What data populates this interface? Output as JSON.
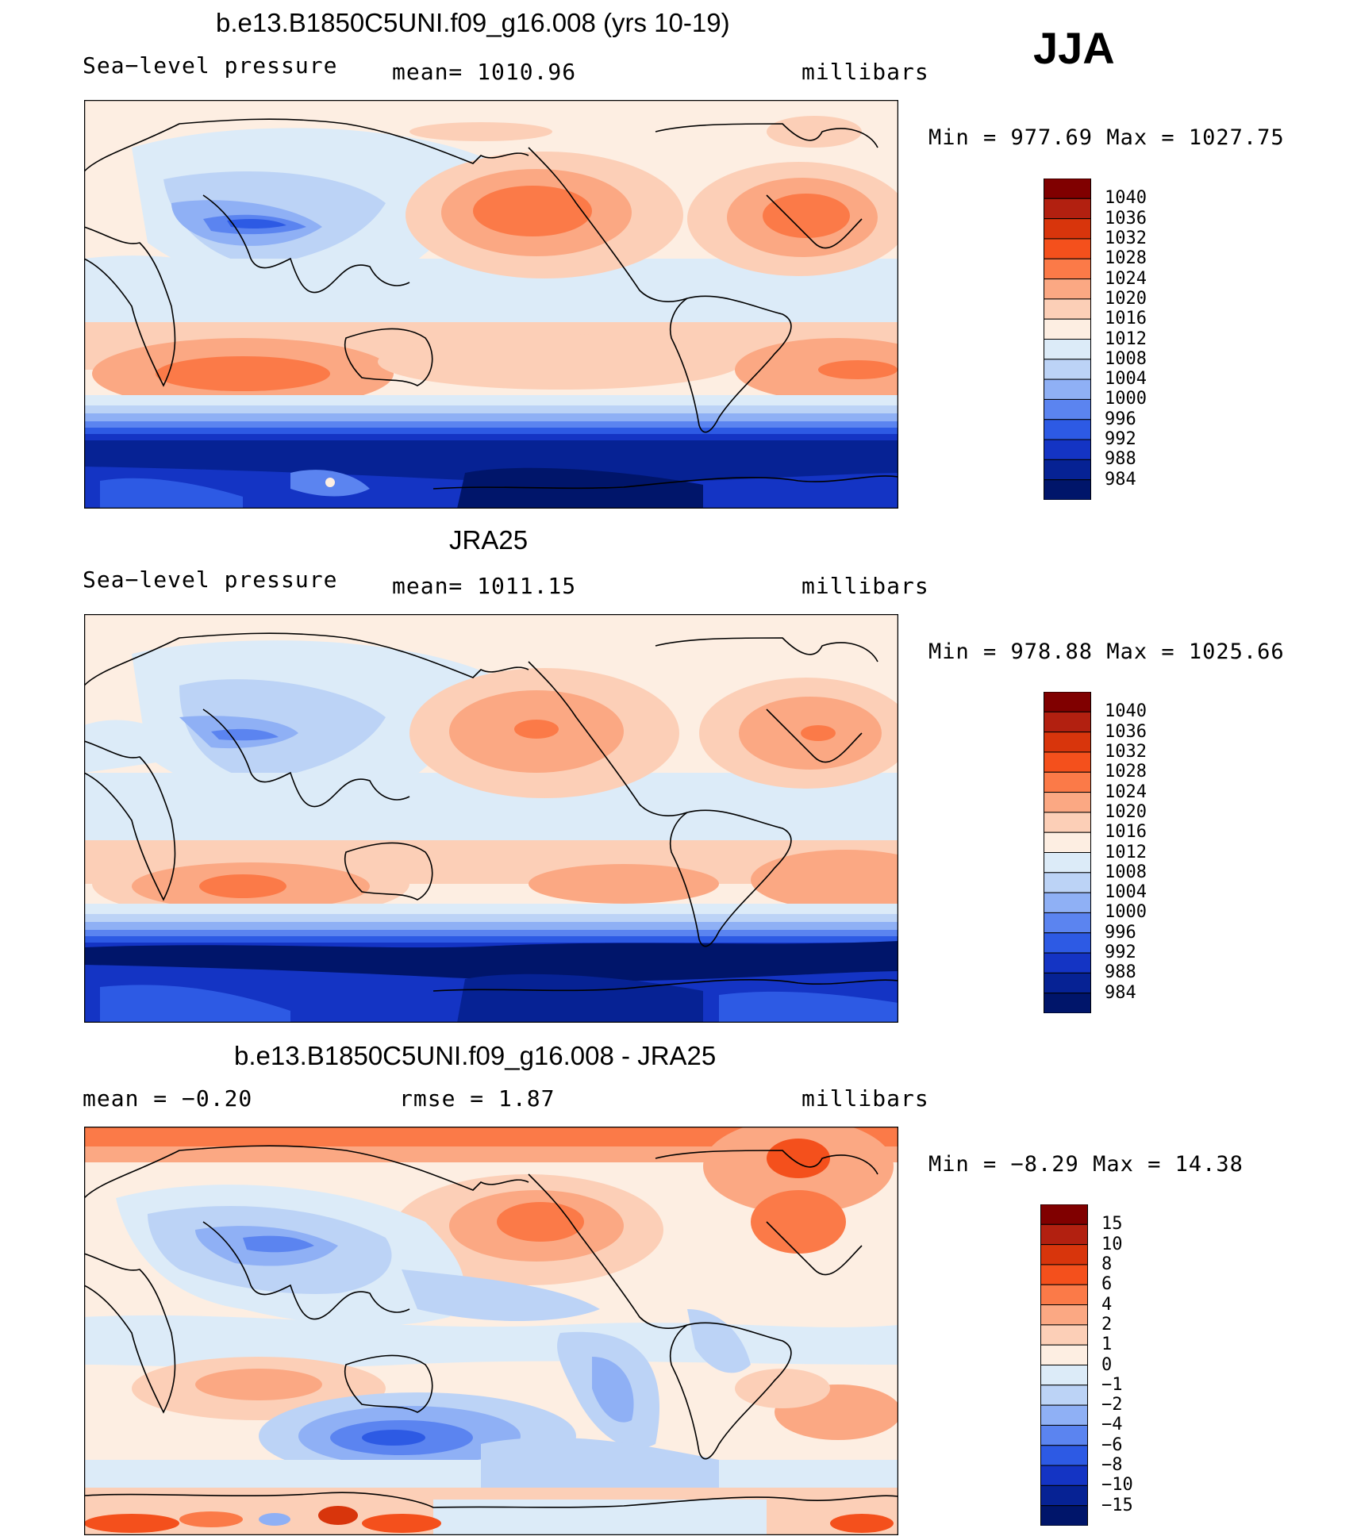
{
  "season": "JJA",
  "panels": [
    {
      "title": "b.e13.B1850C5UNI.f09_g16.008 (yrs 10-19)",
      "left_label": "Sea−level pressure",
      "center_label": "mean=  1010.96",
      "right_label": "millibars",
      "minmax": "Min  =  977.69  Max  =  1027.75",
      "legend_levels": [
        "1040",
        "1036",
        "1032",
        "1028",
        "1024",
        "1020",
        "1016",
        "1012",
        "1008",
        "1004",
        "1000",
        "996",
        "992",
        "988",
        "984"
      ]
    },
    {
      "title": "JRA25",
      "left_label": "Sea−level pressure",
      "center_label": "mean=  1011.15",
      "right_label": "millibars",
      "minmax": "Min  =  978.88  Max  =  1025.66",
      "legend_levels": [
        "1040",
        "1036",
        "1032",
        "1028",
        "1024",
        "1020",
        "1016",
        "1012",
        "1008",
        "1004",
        "1000",
        "996",
        "992",
        "988",
        "984"
      ]
    },
    {
      "title": "b.e13.B1850C5UNI.f09_g16.008 - JRA25",
      "left_label": "mean  =    −0.20",
      "center_label": "rmse  =     1.87",
      "right_label": "millibars",
      "minmax": "Min  =    −8.29  Max  =    14.38",
      "legend_levels": [
        "15",
        "10",
        "8",
        "6",
        "4",
        "2",
        "1",
        "0",
        "−1",
        "−2",
        "−4",
        "−6",
        "−8",
        "−10",
        "−15"
      ]
    }
  ],
  "colors": {
    "legend_colors": [
      "#800000",
      "#b22010",
      "#d8350c",
      "#f4501c",
      "#fb7a48",
      "#fba883",
      "#fccfb7",
      "#fdeee2",
      "#dcebf8",
      "#bcd3f6",
      "#8fb0f5",
      "#5b84f0",
      "#2d5ae4",
      "#1434c4",
      "#062294",
      "#00156a"
    ],
    "diff_colors": [
      "#800000",
      "#b22010",
      "#d8350c",
      "#f4501c",
      "#fb7a48",
      "#fba883",
      "#fccfb7",
      "#fdeee2",
      "#dcebf8",
      "#bcd3f6",
      "#8fb0f5",
      "#5b84f0",
      "#2d5ae4",
      "#1434c4",
      "#062294",
      "#00156a"
    ]
  }
}
